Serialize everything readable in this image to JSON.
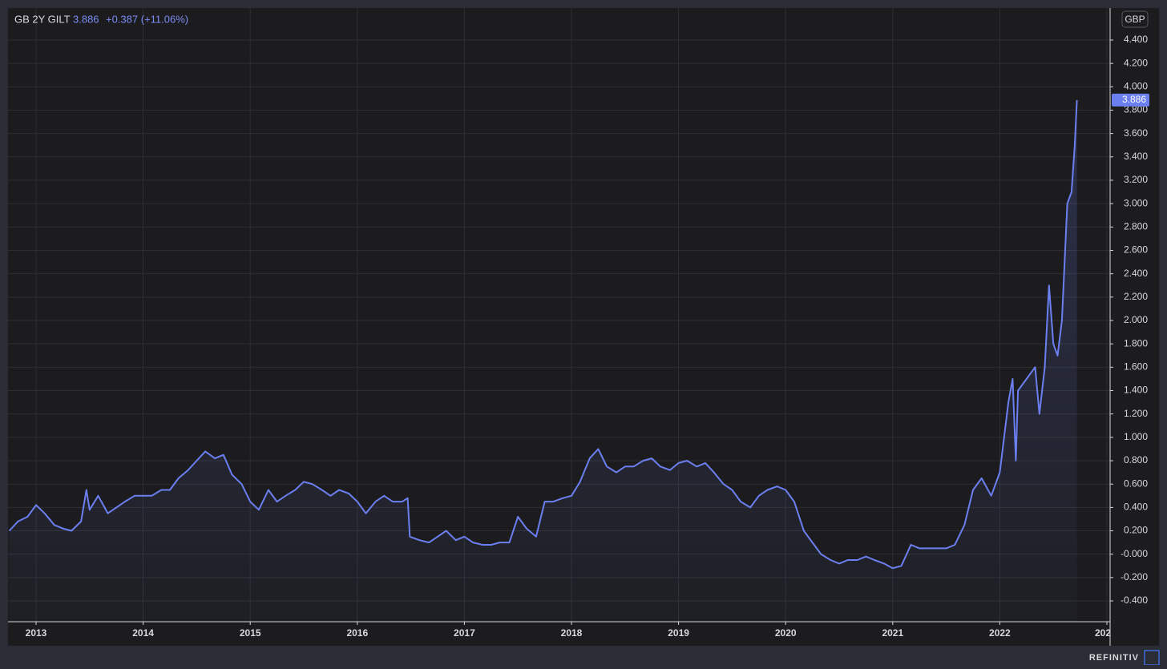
{
  "chart_data": {
    "type": "line",
    "title": "GB 2Y GILT",
    "last_value": 3.886,
    "change_label": "+0.387 (+11.06%)",
    "currency": "GBP",
    "grid": true,
    "color": "#6b7ff0",
    "xlim": [
      2012.738,
      2023.03
    ],
    "xticks": [
      2013,
      2014,
      2015,
      2016,
      2017,
      2018,
      2019,
      2020,
      2021,
      2022,
      {
        "value": 2023,
        "label": "202"
      }
    ],
    "ylim": [
      -0.578,
      4.674
    ],
    "yticks": [
      {
        "value": 4.4,
        "label": "4.400"
      },
      {
        "value": 4.2,
        "label": "4.200"
      },
      {
        "value": 4.0,
        "label": "4.000"
      },
      {
        "value": 3.8,
        "label": "3.800"
      },
      {
        "value": 3.6,
        "label": "3.600"
      },
      {
        "value": 3.4,
        "label": "3.400"
      },
      {
        "value": 3.2,
        "label": "3.200"
      },
      {
        "value": 3.0,
        "label": "3.000"
      },
      {
        "value": 2.8,
        "label": "2.800"
      },
      {
        "value": 2.6,
        "label": "2.600"
      },
      {
        "value": 2.4,
        "label": "2.400"
      },
      {
        "value": 2.2,
        "label": "2.200"
      },
      {
        "value": 2.0,
        "label": "2.000"
      },
      {
        "value": 1.8,
        "label": "1.800"
      },
      {
        "value": 1.6,
        "label": "1.600"
      },
      {
        "value": 1.4,
        "label": "1.400"
      },
      {
        "value": 1.2,
        "label": "1.200"
      },
      {
        "value": 1.0,
        "label": "1.000"
      },
      {
        "value": 0.8,
        "label": "0.800"
      },
      {
        "value": 0.6,
        "label": "0.600"
      },
      {
        "value": 0.4,
        "label": "0.400"
      },
      {
        "value": 0.2,
        "label": "0.200"
      },
      {
        "value": 0,
        "label": "-0.000"
      },
      {
        "value": -0.2,
        "label": "-0.200"
      },
      {
        "value": -0.4,
        "label": "-0.400"
      }
    ],
    "x": [
      2012.75,
      2012.83,
      2012.92,
      2013.0,
      2013.08,
      2013.17,
      2013.25,
      2013.33,
      2013.42,
      2013.47,
      2013.5,
      2013.58,
      2013.67,
      2013.75,
      2013.83,
      2013.92,
      2014.0,
      2014.08,
      2014.17,
      2014.25,
      2014.33,
      2014.42,
      2014.5,
      2014.58,
      2014.67,
      2014.75,
      2014.83,
      2014.92,
      2015.0,
      2015.08,
      2015.17,
      2015.25,
      2015.33,
      2015.42,
      2015.5,
      2015.58,
      2015.67,
      2015.75,
      2015.83,
      2015.92,
      2016.0,
      2016.08,
      2016.17,
      2016.25,
      2016.33,
      2016.42,
      2016.47,
      2016.49,
      2016.58,
      2016.67,
      2016.75,
      2016.83,
      2016.92,
      2017.0,
      2017.08,
      2017.17,
      2017.25,
      2017.33,
      2017.42,
      2017.5,
      2017.58,
      2017.67,
      2017.75,
      2017.83,
      2017.92,
      2018.0,
      2018.08,
      2018.17,
      2018.25,
      2018.33,
      2018.42,
      2018.5,
      2018.58,
      2018.67,
      2018.75,
      2018.83,
      2018.92,
      2019.0,
      2019.08,
      2019.17,
      2019.25,
      2019.33,
      2019.42,
      2019.5,
      2019.58,
      2019.67,
      2019.75,
      2019.83,
      2019.92,
      2020.0,
      2020.08,
      2020.17,
      2020.25,
      2020.33,
      2020.42,
      2020.5,
      2020.58,
      2020.67,
      2020.75,
      2020.83,
      2020.92,
      2021.0,
      2021.08,
      2021.17,
      2021.25,
      2021.33,
      2021.42,
      2021.5,
      2021.58,
      2021.67,
      2021.75,
      2021.83,
      2021.92,
      2022.0,
      2022.08,
      2022.12,
      2022.15,
      2022.17,
      2022.25,
      2022.33,
      2022.37,
      2022.42,
      2022.46,
      2022.5,
      2022.54,
      2022.58,
      2022.63,
      2022.67,
      2022.7,
      2022.72
    ],
    "values": [
      0.2,
      0.28,
      0.32,
      0.42,
      0.35,
      0.25,
      0.22,
      0.2,
      0.28,
      0.55,
      0.38,
      0.5,
      0.35,
      0.4,
      0.45,
      0.5,
      0.5,
      0.5,
      0.55,
      0.55,
      0.65,
      0.72,
      0.8,
      0.88,
      0.82,
      0.85,
      0.68,
      0.6,
      0.45,
      0.38,
      0.55,
      0.45,
      0.5,
      0.55,
      0.62,
      0.6,
      0.55,
      0.5,
      0.55,
      0.52,
      0.45,
      0.35,
      0.45,
      0.5,
      0.45,
      0.45,
      0.48,
      0.15,
      0.12,
      0.1,
      0.15,
      0.2,
      0.12,
      0.15,
      0.1,
      0.08,
      0.08,
      0.1,
      0.1,
      0.32,
      0.22,
      0.15,
      0.45,
      0.45,
      0.48,
      0.5,
      0.62,
      0.82,
      0.9,
      0.75,
      0.7,
      0.75,
      0.75,
      0.8,
      0.82,
      0.75,
      0.72,
      0.78,
      0.8,
      0.75,
      0.78,
      0.7,
      0.6,
      0.55,
      0.45,
      0.4,
      0.5,
      0.55,
      0.58,
      0.55,
      0.45,
      0.2,
      0.1,
      0.0,
      -0.05,
      -0.08,
      -0.05,
      -0.05,
      -0.02,
      -0.05,
      -0.08,
      -0.12,
      -0.1,
      0.08,
      0.05,
      0.05,
      0.05,
      0.05,
      0.08,
      0.25,
      0.55,
      0.65,
      0.5,
      0.7,
      1.3,
      1.5,
      0.8,
      1.4,
      1.5,
      1.6,
      1.2,
      1.6,
      2.3,
      1.8,
      1.7,
      2.0,
      3.0,
      3.1,
      3.5,
      3.886
    ]
  },
  "footer": {
    "brand": "REFINITIV"
  }
}
